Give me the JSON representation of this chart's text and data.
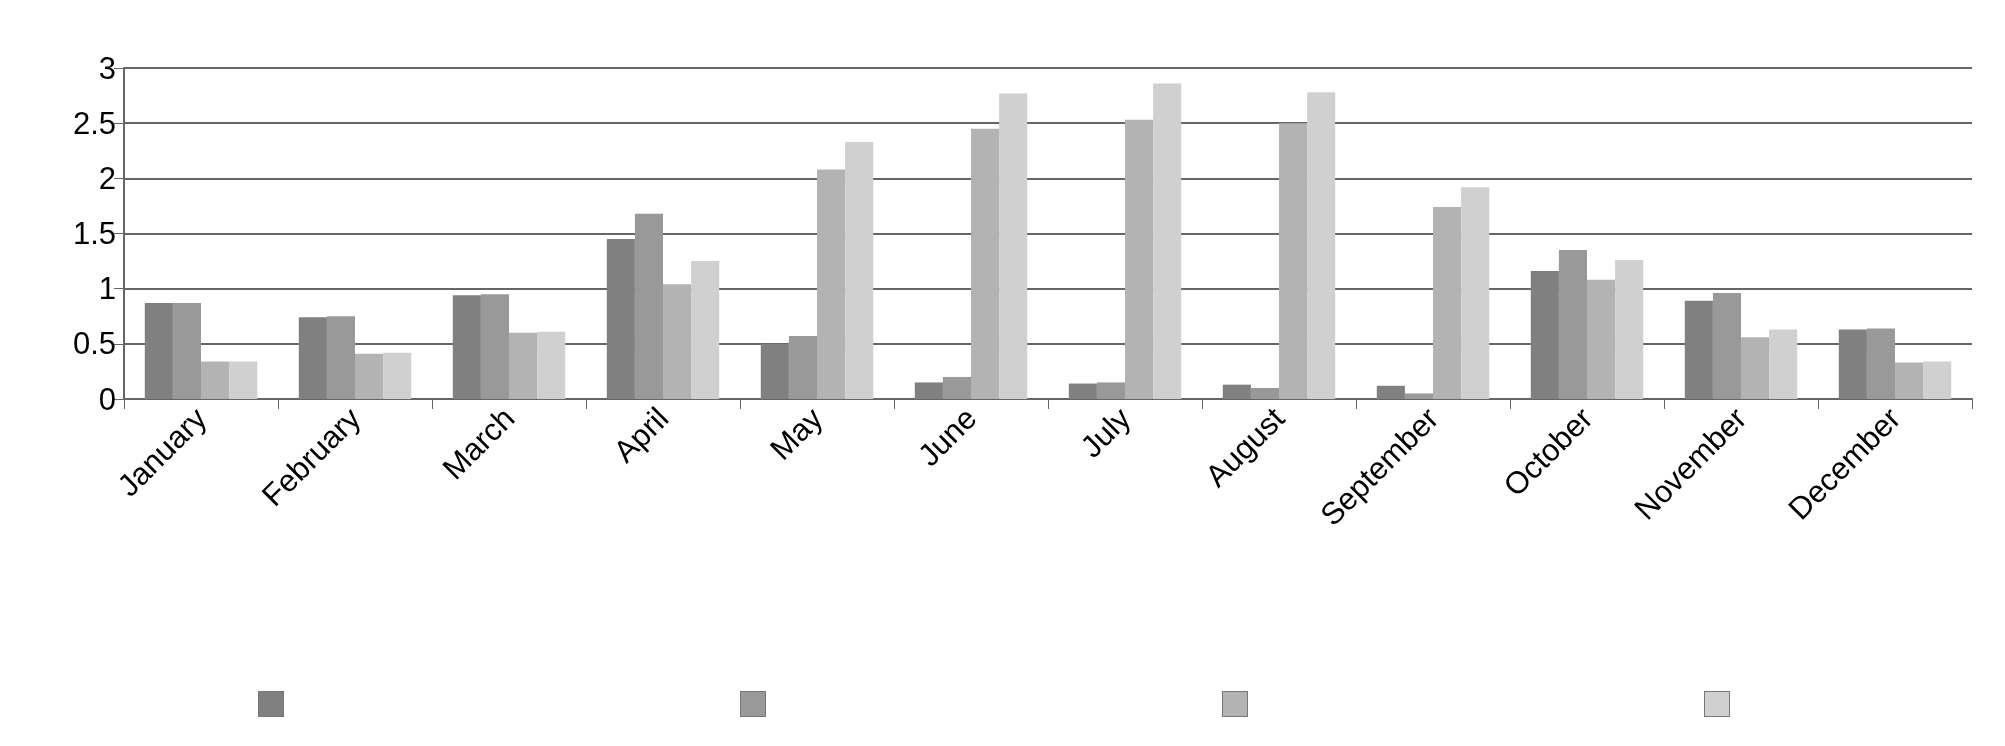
{
  "chart_data": {
    "type": "bar",
    "categories": [
      "January",
      "February",
      "March",
      "April",
      "May",
      "June",
      "July",
      "August",
      "September",
      "October",
      "November",
      "December"
    ],
    "series": [
      {
        "color": "#808080",
        "values": [
          0.87,
          0.74,
          0.94,
          1.45,
          0.5,
          0.15,
          0.14,
          0.13,
          0.12,
          1.16,
          0.89,
          0.63
        ]
      },
      {
        "color": "#999999",
        "values": [
          0.87,
          0.75,
          0.95,
          1.68,
          0.57,
          0.2,
          0.15,
          0.1,
          0.05,
          1.35,
          0.96,
          0.64
        ]
      },
      {
        "color": "#b3b3b3",
        "values": [
          0.34,
          0.41,
          0.6,
          1.04,
          2.08,
          2.45,
          2.53,
          2.5,
          1.74,
          1.08,
          0.56,
          0.33
        ]
      },
      {
        "color": "#d0d0d0",
        "values": [
          0.34,
          0.42,
          0.61,
          1.25,
          2.33,
          2.77,
          2.86,
          2.78,
          1.92,
          1.26,
          0.63,
          0.34
        ]
      }
    ],
    "ylim": [
      0,
      3
    ],
    "yticks": [
      0,
      0.5,
      1,
      1.5,
      2,
      2.5,
      3
    ],
    "grid": "y"
  }
}
